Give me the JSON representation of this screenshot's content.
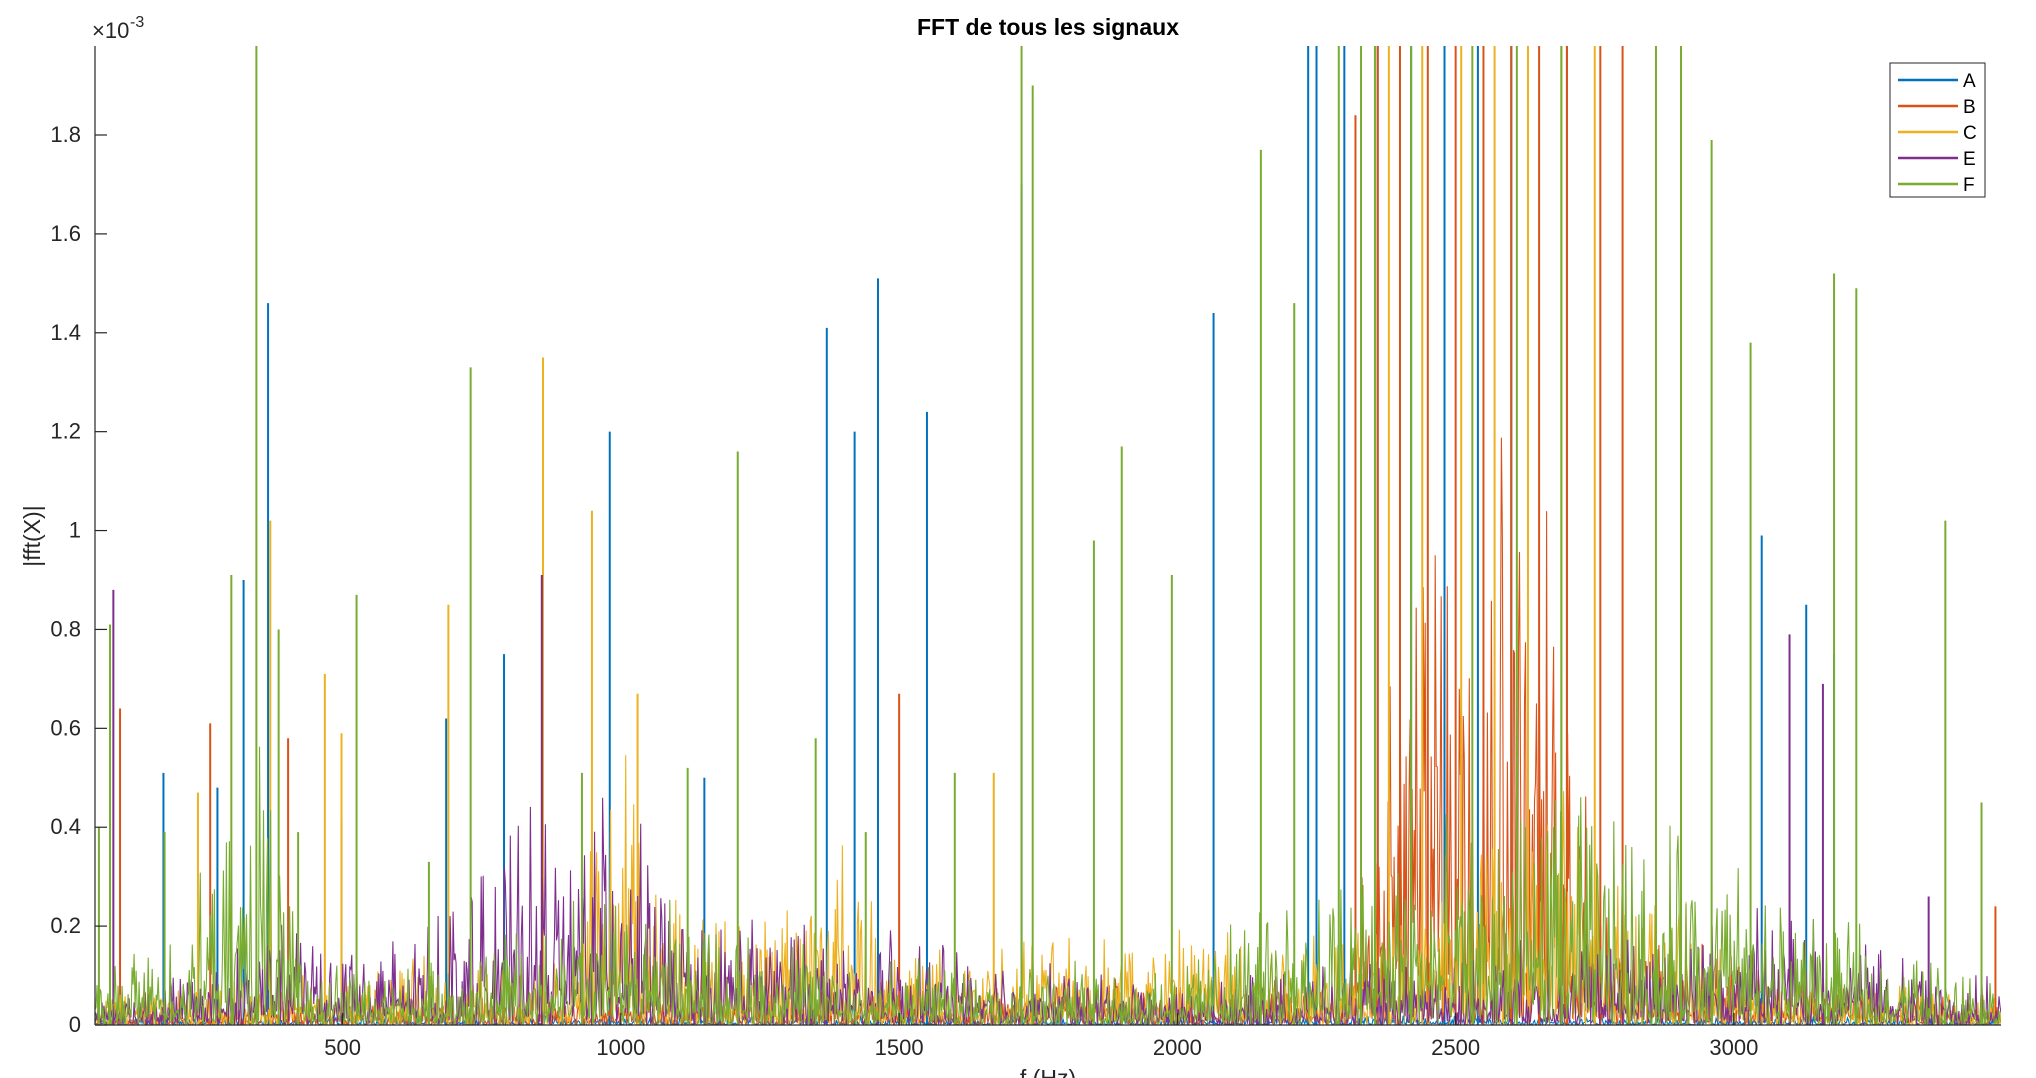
{
  "chart_data": {
    "type": "line",
    "title": "FFT de tous les signaux",
    "xlabel": "f (Hz)",
    "ylabel": "|fft(X)|",
    "exponent_label": "×10",
    "exponent_power": "-3",
    "xlim": [
      55,
      3480
    ],
    "ylim": [
      0,
      1.98
    ],
    "y_unit_scale": 0.001,
    "xticks": [
      500,
      1000,
      1500,
      2000,
      2500,
      3000
    ],
    "yticks": [
      0,
      0.2,
      0.4,
      0.6,
      0.8,
      1,
      1.2,
      1.4,
      1.6,
      1.8
    ],
    "ytick_labels": [
      "0",
      "0.2",
      "0.4",
      "0.6",
      "0.8",
      "1",
      "1.2",
      "1.4",
      "1.6",
      "1.8"
    ],
    "legend_position": "top-right",
    "grid": false,
    "series": [
      {
        "name": "A",
        "color": "#0072BD",
        "noise_profile": [
          [
            55,
            0.01
          ],
          [
            3480,
            0.01
          ]
        ],
        "peaks": [
          [
            178,
            0.51
          ],
          [
            275,
            0.48
          ],
          [
            322,
            0.9
          ],
          [
            366,
            1.46
          ],
          [
            498,
            0.41
          ],
          [
            686,
            0.62
          ],
          [
            790,
            0.75
          ],
          [
            980,
            1.2
          ],
          [
            1150,
            0.5
          ],
          [
            1370,
            1.41
          ],
          [
            1420,
            1.2
          ],
          [
            1462,
            1.51
          ],
          [
            1550,
            1.24
          ],
          [
            1720,
            1.7
          ],
          [
            2065,
            1.44
          ],
          [
            2235,
            1.98
          ],
          [
            2250,
            1.98
          ],
          [
            2300,
            1.98
          ],
          [
            2360,
            1.98
          ],
          [
            2420,
            1.98
          ],
          [
            2480,
            1.98
          ],
          [
            2540,
            1.98
          ],
          [
            2600,
            1.98
          ],
          [
            2700,
            1.98
          ],
          [
            3050,
            0.99
          ],
          [
            3130,
            0.85
          ],
          [
            3180,
            0.75
          ]
        ]
      },
      {
        "name": "B",
        "color": "#D95319",
        "noise_profile": [
          [
            55,
            0.02
          ],
          [
            2300,
            0.05
          ],
          [
            2450,
            0.6
          ],
          [
            2550,
            0.75
          ],
          [
            2650,
            0.55
          ],
          [
            2800,
            0.1
          ],
          [
            3480,
            0.02
          ]
        ],
        "peaks": [
          [
            100,
            0.64
          ],
          [
            262,
            0.61
          ],
          [
            402,
            0.58
          ],
          [
            858,
            0.91
          ],
          [
            1500,
            0.67
          ],
          [
            2320,
            1.84
          ],
          [
            2360,
            1.98
          ],
          [
            2400,
            1.98
          ],
          [
            2450,
            1.98
          ],
          [
            2500,
            1.98
          ],
          [
            2550,
            1.98
          ],
          [
            2600,
            1.98
          ],
          [
            2650,
            1.98
          ],
          [
            2700,
            1.98
          ],
          [
            2760,
            1.98
          ],
          [
            2800,
            1.98
          ],
          [
            3470,
            0.24
          ]
        ]
      },
      {
        "name": "C",
        "color": "#EDB120",
        "noise_profile": [
          [
            55,
            0.03
          ],
          [
            900,
            0.08
          ],
          [
            1000,
            0.3
          ],
          [
            1100,
            0.12
          ],
          [
            1300,
            0.12
          ],
          [
            1400,
            0.2
          ],
          [
            1500,
            0.08
          ],
          [
            2400,
            0.12
          ],
          [
            2700,
            0.25
          ],
          [
            3000,
            0.06
          ],
          [
            3480,
            0.03
          ]
        ],
        "peaks": [
          [
            240,
            0.47
          ],
          [
            370,
            1.02
          ],
          [
            468,
            0.71
          ],
          [
            498,
            0.59
          ],
          [
            690,
            0.85
          ],
          [
            860,
            1.35
          ],
          [
            948,
            1.04
          ],
          [
            1030,
            0.67
          ],
          [
            1670,
            0.51
          ],
          [
            2380,
            1.98
          ],
          [
            2440,
            1.98
          ],
          [
            2510,
            1.98
          ],
          [
            2570,
            1.98
          ],
          [
            2630,
            1.98
          ],
          [
            2690,
            1.98
          ],
          [
            2750,
            1.98
          ]
        ]
      },
      {
        "name": "E",
        "color": "#7E2F8E",
        "noise_profile": [
          [
            55,
            0.03
          ],
          [
            400,
            0.1
          ],
          [
            500,
            0.12
          ],
          [
            600,
            0.08
          ],
          [
            800,
            0.2
          ],
          [
            1000,
            0.25
          ],
          [
            1100,
            0.12
          ],
          [
            1400,
            0.1
          ],
          [
            2000,
            0.04
          ],
          [
            2600,
            0.08
          ],
          [
            3000,
            0.12
          ],
          [
            3200,
            0.1
          ],
          [
            3480,
            0.04
          ]
        ],
        "peaks": [
          [
            88,
            0.88
          ],
          [
            858,
            0.91
          ],
          [
            3100,
            0.79
          ],
          [
            3160,
            0.69
          ],
          [
            3350,
            0.26
          ]
        ]
      },
      {
        "name": "F",
        "color": "#77AC30",
        "noise_profile": [
          [
            55,
            0.05
          ],
          [
            200,
            0.1
          ],
          [
            320,
            0.22
          ],
          [
            360,
            0.32
          ],
          [
            420,
            0.08
          ],
          [
            550,
            0.06
          ],
          [
            700,
            0.06
          ],
          [
            820,
            0.12
          ],
          [
            1000,
            0.15
          ],
          [
            1200,
            0.1
          ],
          [
            1500,
            0.07
          ],
          [
            2000,
            0.06
          ],
          [
            2200,
            0.15
          ],
          [
            2500,
            0.2
          ],
          [
            2700,
            0.25
          ],
          [
            2900,
            0.2
          ],
          [
            3200,
            0.1
          ],
          [
            3480,
            0.05
          ]
        ],
        "peaks": [
          [
            62,
            0.4
          ],
          [
            82,
            0.81
          ],
          [
            180,
            0.39
          ],
          [
            300,
            0.91
          ],
          [
            345,
            1.98
          ],
          [
            385,
            0.8
          ],
          [
            420,
            0.39
          ],
          [
            525,
            0.87
          ],
          [
            655,
            0.33
          ],
          [
            730,
            1.33
          ],
          [
            930,
            0.51
          ],
          [
            1120,
            0.52
          ],
          [
            1210,
            1.16
          ],
          [
            1350,
            0.58
          ],
          [
            1440,
            0.39
          ],
          [
            1600,
            0.51
          ],
          [
            1720,
            1.98
          ],
          [
            1740,
            1.9
          ],
          [
            1850,
            0.98
          ],
          [
            1900,
            1.17
          ],
          [
            1990,
            0.91
          ],
          [
            2150,
            1.77
          ],
          [
            2210,
            1.46
          ],
          [
            2290,
            1.98
          ],
          [
            2330,
            1.98
          ],
          [
            2355,
            1.98
          ],
          [
            2420,
            1.98
          ],
          [
            2530,
            1.98
          ],
          [
            2610,
            1.98
          ],
          [
            2690,
            1.98
          ],
          [
            2860,
            1.98
          ],
          [
            2905,
            1.98
          ],
          [
            2960,
            1.79
          ],
          [
            3030,
            1.38
          ],
          [
            3180,
            1.52
          ],
          [
            3220,
            1.49
          ],
          [
            3380,
            1.02
          ],
          [
            3445,
            0.45
          ]
        ]
      }
    ]
  }
}
